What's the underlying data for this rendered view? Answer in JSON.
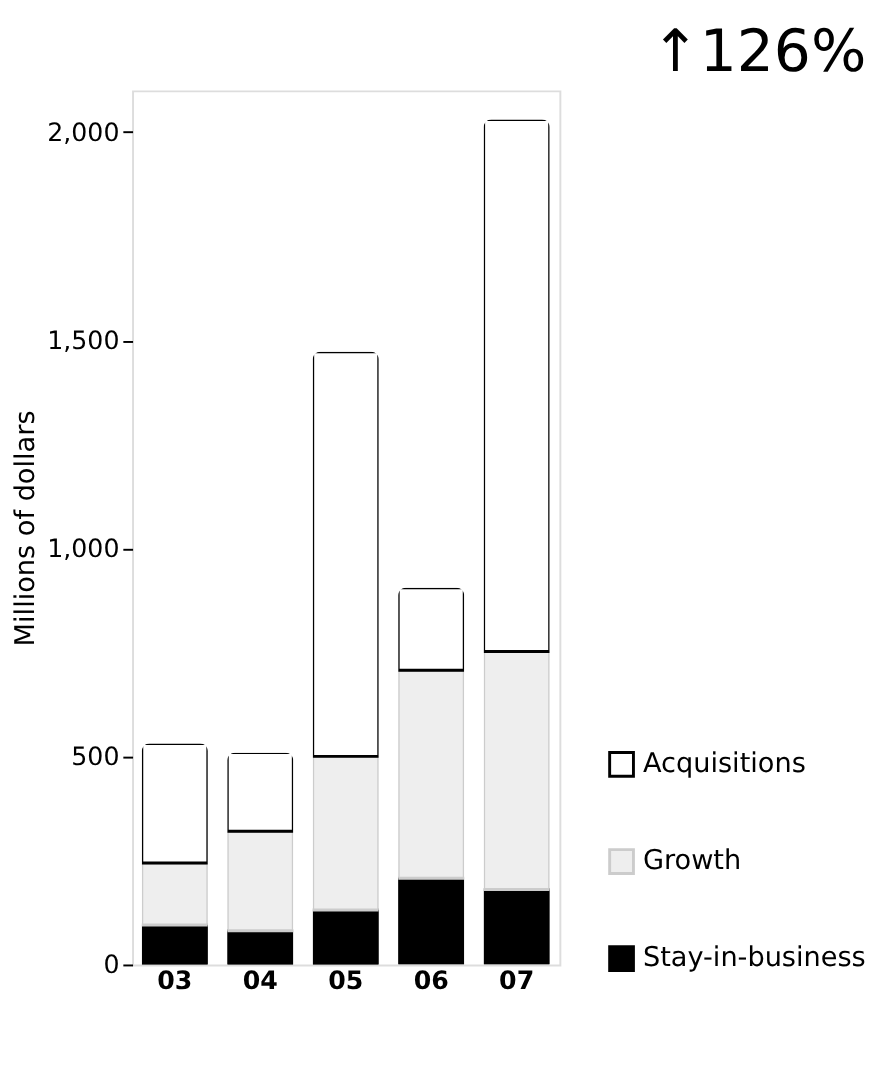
{
  "chart_data": {
    "type": "bar",
    "stacked": true,
    "ylabel": "Millions of dollars",
    "annotations": [
      "↑126%"
    ],
    "categories": [
      "03",
      "04",
      "05",
      "06",
      "07"
    ],
    "series": [
      {
        "name": "Stay-in-business",
        "color": "#000000",
        "values": [
          95,
          81,
          131,
          207,
          180
        ]
      },
      {
        "name": "Growth",
        "color": "#eeeeee",
        "values": [
          149,
          239,
          369,
          500,
          572
        ]
      },
      {
        "name": "Acquisitions",
        "color": "#ffffff",
        "values": [
          287,
          189,
          972,
          198,
          1278
        ]
      }
    ],
    "ylim": [
      0,
      2100
    ],
    "yticks": [
      0,
      {
        "value": 500,
        "label": "500"
      },
      {
        "value": 1000,
        "label": "1,000"
      },
      {
        "value": 1500,
        "label": "1,500"
      },
      {
        "value": 2000,
        "label": "2,000"
      }
    ],
    "grid": false,
    "legend": "bottom right"
  }
}
